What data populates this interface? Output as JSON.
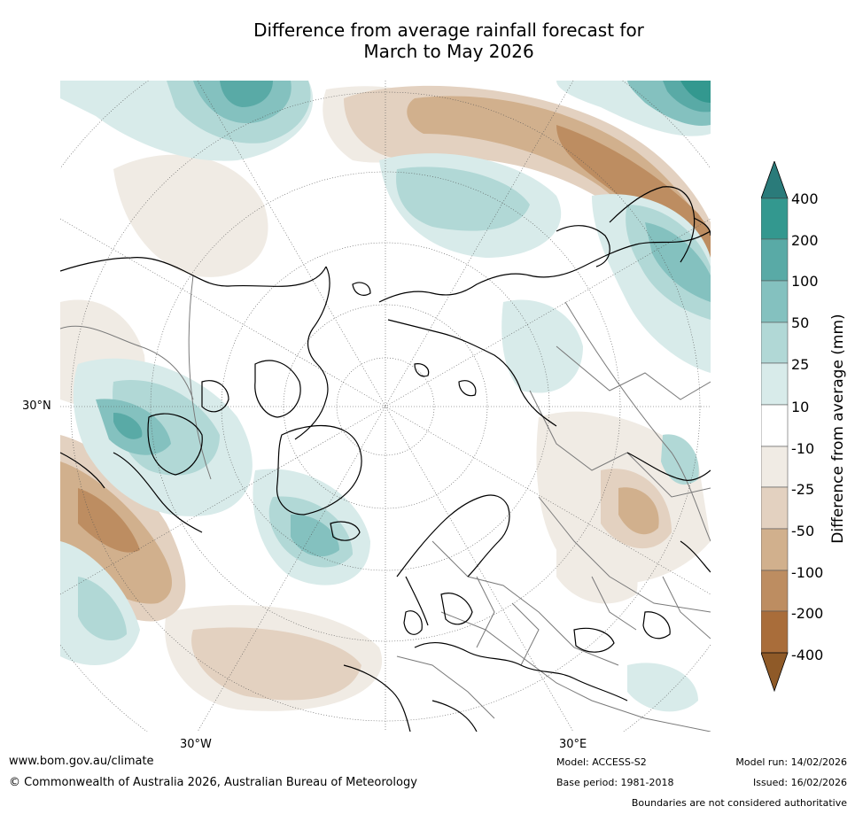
{
  "title": {
    "line1": "Difference from average rainfall forecast for",
    "line2": "March to May 2026"
  },
  "map": {
    "projection": "north polar stereographic",
    "labels": {
      "lat": "30°N",
      "lon_west": "30°W",
      "lon_east": "30°E"
    }
  },
  "colorbar": {
    "title": "Difference from average (mm)",
    "ticks": [
      "400",
      "200",
      "100",
      "50",
      "25",
      "10",
      "-10",
      "-25",
      "-50",
      "-100",
      "-200",
      "-400"
    ],
    "colors": [
      "#2a7b7a",
      "#33988f",
      "#59aaa6",
      "#84c1bf",
      "#b1d8d6",
      "#d8ebea",
      "#ffffff",
      "#f0ebe4",
      "#e3d1c0",
      "#d1b08d",
      "#bd8d61",
      "#a96d3a",
      "#8f5a28"
    ]
  },
  "footer": {
    "website": "www.bom.gov.au/climate",
    "copyright": "© Commonwealth of Australia 2026, Australian Bureau of Meteorology",
    "model": "Model: ACCESS-S2",
    "base_period": "Base period: 1981-2018",
    "model_run": "Model run: 14/02/2026",
    "issued": "Issued: 16/02/2026",
    "disclaimer": "Boundaries are not considered authoritative"
  }
}
